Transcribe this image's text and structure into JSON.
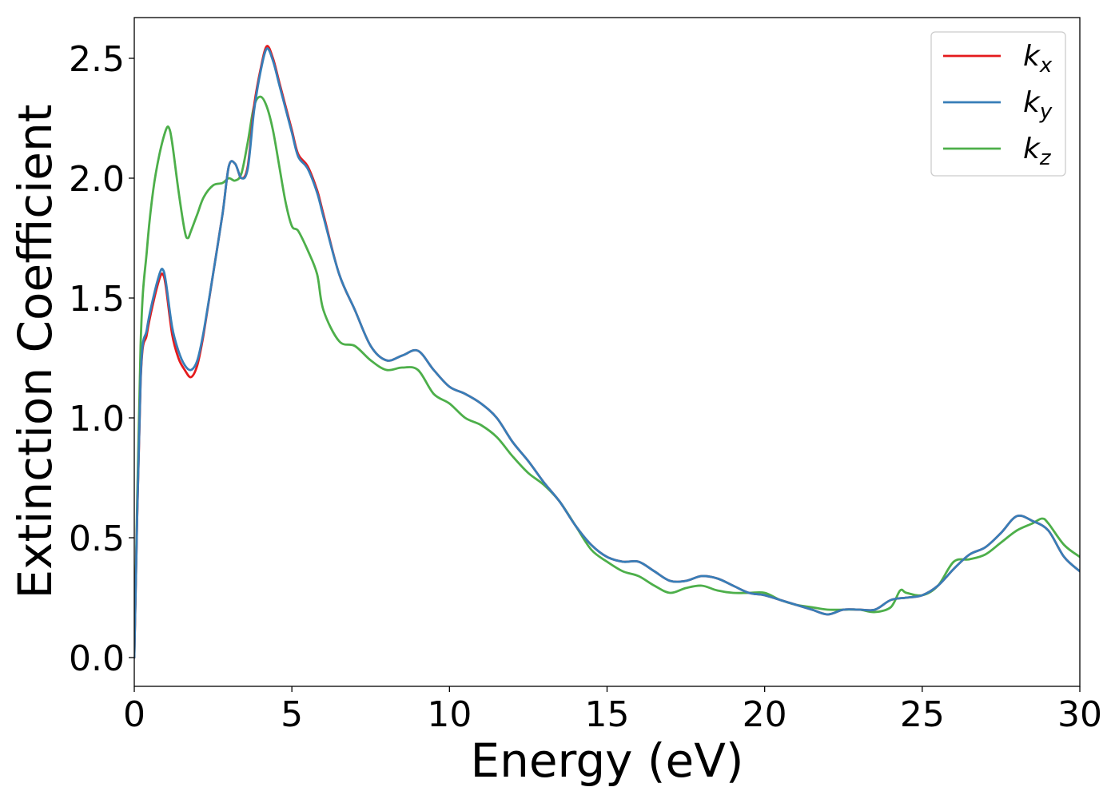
{
  "chart_data": {
    "type": "line",
    "xlabel": "Energy (eV)",
    "ylabel": "Extinction Coefficient",
    "xlim": [
      0,
      30
    ],
    "ylim": [
      -0.12,
      2.67
    ],
    "xticks": [
      0,
      5,
      10,
      15,
      20,
      25,
      30
    ],
    "xtick_labels": [
      "0",
      "5",
      "10",
      "15",
      "20",
      "25",
      "30"
    ],
    "yticks": [
      0.0,
      0.5,
      1.0,
      1.5,
      2.0,
      2.5
    ],
    "ytick_labels": [
      "0.0",
      "0.5",
      "1.0",
      "1.5",
      "2.0",
      "2.5"
    ],
    "grid": false,
    "legend_position": "top-right",
    "series": [
      {
        "name_base": "k",
        "name_sub": "x",
        "color": "#e41a1c",
        "x": [
          0,
          0.2,
          0.4,
          0.6,
          0.8,
          0.9,
          1.0,
          1.2,
          1.4,
          1.6,
          1.8,
          2.0,
          2.2,
          2.5,
          2.8,
          3.0,
          3.2,
          3.4,
          3.6,
          3.8,
          4.0,
          4.2,
          4.4,
          4.6,
          4.8,
          5.0,
          5.2,
          5.5,
          5.8,
          6.0,
          6.5,
          7.0,
          7.5,
          8.0,
          8.5,
          9.0,
          9.5,
          10.0,
          10.5,
          11.0,
          11.5,
          12.0,
          12.5,
          13.0,
          13.5,
          14.0,
          14.5,
          15.0,
          15.5,
          16.0,
          16.5,
          17.0,
          17.5,
          18.0,
          18.5,
          19.0,
          19.5,
          20.0,
          20.5,
          21.0,
          21.5,
          22.0,
          22.5,
          23.0,
          23.5,
          24.0,
          24.5,
          25.0,
          25.5,
          26.0,
          26.5,
          27.0,
          27.5,
          28.0,
          28.5,
          29.0,
          29.5,
          30.0
        ],
        "y": [
          0.0,
          1.15,
          1.35,
          1.48,
          1.58,
          1.6,
          1.55,
          1.35,
          1.25,
          1.2,
          1.17,
          1.22,
          1.35,
          1.6,
          1.85,
          2.05,
          2.06,
          2.0,
          2.05,
          2.3,
          2.45,
          2.55,
          2.5,
          2.4,
          2.3,
          2.2,
          2.1,
          2.05,
          1.95,
          1.85,
          1.6,
          1.45,
          1.3,
          1.24,
          1.26,
          1.28,
          1.2,
          1.13,
          1.1,
          1.06,
          1.0,
          0.9,
          0.82,
          0.73,
          0.65,
          0.55,
          0.47,
          0.42,
          0.4,
          0.4,
          0.36,
          0.32,
          0.32,
          0.34,
          0.33,
          0.3,
          0.27,
          0.26,
          0.24,
          0.22,
          0.2,
          0.18,
          0.2,
          0.2,
          0.2,
          0.24,
          0.25,
          0.26,
          0.3,
          0.37,
          0.43,
          0.46,
          0.52,
          0.59,
          0.57,
          0.53,
          0.42,
          0.36
        ]
      },
      {
        "name_base": "k",
        "name_sub": "y",
        "color": "#377eb8",
        "x": [
          0,
          0.2,
          0.4,
          0.6,
          0.8,
          0.9,
          1.0,
          1.2,
          1.4,
          1.6,
          1.8,
          2.0,
          2.2,
          2.5,
          2.8,
          3.0,
          3.2,
          3.4,
          3.6,
          3.8,
          4.0,
          4.2,
          4.4,
          4.6,
          4.8,
          5.0,
          5.2,
          5.5,
          5.8,
          6.0,
          6.5,
          7.0,
          7.5,
          8.0,
          8.5,
          9.0,
          9.5,
          10.0,
          10.5,
          11.0,
          11.5,
          12.0,
          12.5,
          13.0,
          13.5,
          14.0,
          14.5,
          15.0,
          15.5,
          16.0,
          16.5,
          17.0,
          17.5,
          18.0,
          18.5,
          19.0,
          19.5,
          20.0,
          20.5,
          21.0,
          21.5,
          22.0,
          22.5,
          23.0,
          23.5,
          24.0,
          24.5,
          25.0,
          25.5,
          26.0,
          26.5,
          27.0,
          27.5,
          28.0,
          28.5,
          29.0,
          29.5,
          30.0
        ],
        "y": [
          0.0,
          1.16,
          1.37,
          1.5,
          1.6,
          1.62,
          1.57,
          1.38,
          1.28,
          1.22,
          1.2,
          1.24,
          1.36,
          1.6,
          1.85,
          2.05,
          2.06,
          2.0,
          2.04,
          2.28,
          2.44,
          2.54,
          2.49,
          2.39,
          2.29,
          2.19,
          2.09,
          2.04,
          1.94,
          1.84,
          1.6,
          1.45,
          1.3,
          1.24,
          1.26,
          1.28,
          1.2,
          1.13,
          1.1,
          1.06,
          1.0,
          0.9,
          0.82,
          0.73,
          0.65,
          0.55,
          0.47,
          0.42,
          0.4,
          0.4,
          0.36,
          0.32,
          0.32,
          0.34,
          0.33,
          0.3,
          0.27,
          0.26,
          0.24,
          0.22,
          0.2,
          0.18,
          0.2,
          0.2,
          0.2,
          0.24,
          0.25,
          0.26,
          0.3,
          0.37,
          0.43,
          0.46,
          0.52,
          0.59,
          0.57,
          0.53,
          0.42,
          0.36
        ]
      },
      {
        "name_base": "k",
        "name_sub": "z",
        "color": "#4daf4a",
        "x": [
          0,
          0.2,
          0.4,
          0.6,
          0.8,
          1.0,
          1.1,
          1.2,
          1.4,
          1.6,
          1.7,
          1.8,
          2.0,
          2.2,
          2.5,
          2.8,
          3.0,
          3.2,
          3.4,
          3.6,
          3.8,
          4.0,
          4.2,
          4.4,
          4.6,
          4.8,
          5.0,
          5.2,
          5.5,
          5.8,
          6.0,
          6.5,
          7.0,
          7.5,
          8.0,
          8.5,
          9.0,
          9.5,
          10.0,
          10.5,
          11.0,
          11.5,
          12.0,
          12.5,
          13.0,
          13.5,
          14.0,
          14.5,
          15.0,
          15.5,
          16.0,
          16.5,
          17.0,
          17.5,
          18.0,
          18.5,
          19.0,
          19.5,
          20.0,
          20.5,
          21.0,
          21.5,
          22.0,
          22.5,
          23.0,
          23.5,
          24.0,
          24.3,
          24.5,
          25.0,
          25.5,
          26.0,
          26.5,
          27.0,
          27.5,
          28.0,
          28.5,
          28.8,
          29.0,
          29.5,
          30.0
        ],
        "y": [
          0.0,
          1.3,
          1.7,
          1.95,
          2.1,
          2.2,
          2.21,
          2.15,
          1.95,
          1.78,
          1.75,
          1.78,
          1.85,
          1.92,
          1.97,
          1.98,
          2.0,
          1.99,
          2.02,
          2.15,
          2.3,
          2.34,
          2.3,
          2.2,
          2.05,
          1.9,
          1.8,
          1.78,
          1.7,
          1.6,
          1.45,
          1.32,
          1.3,
          1.24,
          1.2,
          1.21,
          1.2,
          1.1,
          1.06,
          1.0,
          0.97,
          0.92,
          0.84,
          0.77,
          0.72,
          0.65,
          0.55,
          0.45,
          0.4,
          0.36,
          0.34,
          0.3,
          0.27,
          0.29,
          0.3,
          0.28,
          0.27,
          0.27,
          0.27,
          0.24,
          0.22,
          0.21,
          0.2,
          0.2,
          0.2,
          0.19,
          0.21,
          0.28,
          0.27,
          0.26,
          0.3,
          0.4,
          0.41,
          0.43,
          0.48,
          0.53,
          0.56,
          0.58,
          0.56,
          0.47,
          0.42
        ]
      }
    ]
  }
}
